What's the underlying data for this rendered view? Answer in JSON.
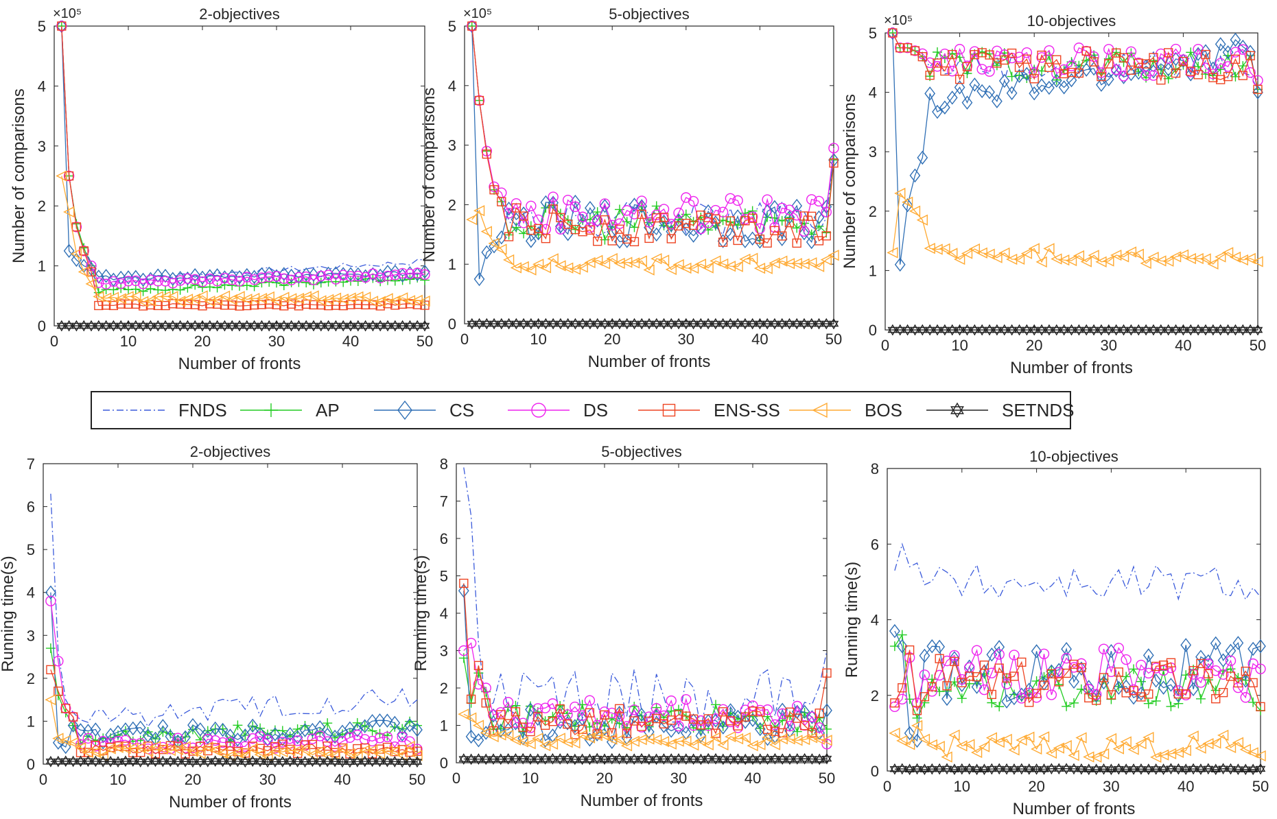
{
  "legend": {
    "entries": [
      {
        "name": "FNDS",
        "marker": "none",
        "dash": "dashdot",
        "color": "#3b5bdb"
      },
      {
        "name": "AP",
        "marker": "plus",
        "dash": "solid",
        "color": "#22cc22"
      },
      {
        "name": "CS",
        "marker": "diamond",
        "dash": "solid",
        "color": "#2f6fb5"
      },
      {
        "name": "DS",
        "marker": "circle",
        "dash": "solid",
        "color": "#ee22ee"
      },
      {
        "name": "ENS-SS",
        "marker": "square",
        "dash": "solid",
        "color": "#ee4422"
      },
      {
        "name": "BOS",
        "marker": "triangle-left",
        "dash": "solid",
        "color": "#ffaa33"
      },
      {
        "name": "SETNDS",
        "marker": "hexagram",
        "dash": "solid",
        "color": "#222222"
      }
    ]
  },
  "chart_data": [
    {
      "type": "line",
      "title": "2-objectives",
      "xlabel": "Number of fronts",
      "ylabel": "Number of comparisons",
      "exponent_label": "×10⁵",
      "xlim": [
        0,
        50
      ],
      "ylim": [
        0,
        5
      ],
      "xticks": [
        0,
        10,
        20,
        30,
        40,
        50
      ],
      "yticks": [
        0,
        1,
        2,
        3,
        4,
        5
      ],
      "x_range": [
        1,
        50
      ],
      "series": [
        {
          "name": "FNDS",
          "start": [
            5,
            2.5,
            1.7,
            1.3,
            1.05
          ],
          "base": 0.72,
          "slope": 0.007,
          "noise": 0.05,
          "end": 1.1
        },
        {
          "name": "AP",
          "start": [
            5,
            2.5,
            1.7,
            1.3,
            1.0
          ],
          "base": 0.55,
          "slope": 0.005,
          "noise": 0.04
        },
        {
          "name": "CS",
          "start": [
            5,
            1.25,
            1.1,
            1.0,
            0.95
          ],
          "base": 0.78,
          "slope": 0.002,
          "noise": 0.04
        },
        {
          "name": "DS",
          "start": [
            5,
            2.5,
            1.65,
            1.25,
            1.0
          ],
          "base": 0.7,
          "slope": 0.003,
          "noise": 0.04
        },
        {
          "name": "ENS-SS",
          "start": [
            5,
            2.5,
            1.65,
            1.25,
            0.9
          ],
          "base": 0.35,
          "slope": 0.0,
          "noise": 0.02
        },
        {
          "name": "BOS",
          "start": [
            2.5,
            1.9,
            1.2,
            0.9,
            0.7
          ],
          "base": 0.45,
          "slope": 0.0,
          "noise": 0.05
        },
        {
          "name": "SETNDS",
          "start": [],
          "base": 0.0,
          "slope": 0,
          "noise": 0
        }
      ]
    },
    {
      "type": "line",
      "title": "5-objectives",
      "xlabel": "Number of fronts",
      "ylabel": "Number of comparisons",
      "exponent_label": "×10⁵",
      "xlim": [
        0,
        50
      ],
      "ylim": [
        0,
        5
      ],
      "xticks": [
        0,
        10,
        20,
        30,
        40,
        50
      ],
      "yticks": [
        0,
        1,
        2,
        3,
        4,
        5
      ],
      "x_range": [
        1,
        50
      ],
      "series": [
        {
          "name": "FNDS",
          "start": [
            5,
            3.75,
            2.9,
            2.25,
            2.1
          ],
          "base": 1.75,
          "slope": 0.0,
          "noise": 0.3,
          "end": 2.8
        },
        {
          "name": "AP",
          "start": [
            5,
            3.75,
            2.9,
            2.25,
            2.05
          ],
          "base": 1.7,
          "slope": 0.0,
          "noise": 0.3,
          "end": 2.75
        },
        {
          "name": "CS",
          "start": [
            5,
            0.75,
            1.2,
            1.3,
            1.45
          ],
          "base": 1.7,
          "slope": 0.0,
          "noise": 0.35,
          "end": 2.75
        },
        {
          "name": "DS",
          "start": [
            5,
            3.75,
            2.9,
            2.3,
            2.2
          ],
          "base": 1.85,
          "slope": 0.0,
          "noise": 0.3,
          "end": 2.95
        },
        {
          "name": "ENS-SS",
          "start": [
            5,
            3.75,
            2.85,
            2.25,
            2.05
          ],
          "base": 1.65,
          "slope": 0.0,
          "noise": 0.3,
          "end": 2.7
        },
        {
          "name": "BOS",
          "start": [
            1.75,
            1.9,
            1.55,
            1.35,
            1.25
          ],
          "base": 1.0,
          "slope": 0.0,
          "noise": 0.1,
          "end": 1.15
        },
        {
          "name": "SETNDS",
          "start": [],
          "base": 0.0,
          "slope": 0,
          "noise": 0
        }
      ]
    },
    {
      "type": "line",
      "title": "10-objectives",
      "xlabel": "Number of fronts",
      "ylabel": "Number of comparisons",
      "exponent_label": "×10⁵",
      "xlim": [
        0,
        50
      ],
      "ylim": [
        0,
        5
      ],
      "xticks": [
        0,
        10,
        20,
        30,
        40,
        50
      ],
      "yticks": [
        0,
        1,
        2,
        3,
        4,
        5
      ],
      "x_range": [
        1,
        50
      ],
      "series": [
        {
          "name": "FNDS",
          "start": [
            5,
            4.75,
            4.75,
            4.7,
            4.6
          ],
          "base": 4.45,
          "slope": 0.0,
          "noise": 0.25,
          "end": 4.05
        },
        {
          "name": "AP",
          "start": [
            5,
            4.75,
            4.75,
            4.7,
            4.6
          ],
          "base": 4.45,
          "slope": 0.0,
          "noise": 0.25,
          "end": 4.05
        },
        {
          "name": "CS",
          "start": [
            5,
            1.1,
            2.1,
            2.6,
            2.9
          ],
          "base": 3.7,
          "slope": 0.02,
          "noise": 0.25,
          "end": 4.0
        },
        {
          "name": "DS",
          "start": [
            5,
            4.75,
            4.75,
            4.7,
            4.65
          ],
          "base": 4.5,
          "slope": 0.0,
          "noise": 0.25,
          "end": 4.2
        },
        {
          "name": "ENS-SS",
          "start": [
            5,
            4.75,
            4.75,
            4.7,
            4.6
          ],
          "base": 4.45,
          "slope": 0.0,
          "noise": 0.25,
          "end": 4.05
        },
        {
          "name": "BOS",
          "start": [
            1.3,
            2.3,
            2.15,
            2.0,
            1.85
          ],
          "base": 1.3,
          "slope": -0.002,
          "noise": 0.12,
          "end": 1.15
        },
        {
          "name": "SETNDS",
          "start": [],
          "base": 0.0,
          "slope": 0,
          "noise": 0
        }
      ]
    },
    {
      "type": "line",
      "title": "2-objectives",
      "xlabel": "Number of fronts",
      "ylabel": "Running time(s)",
      "exponent_label": "",
      "xlim": [
        0,
        50
      ],
      "ylim": [
        0,
        7
      ],
      "xticks": [
        0,
        10,
        20,
        30,
        40,
        50
      ],
      "yticks": [
        0,
        1,
        2,
        3,
        4,
        5,
        6,
        7
      ],
      "x_range": [
        1,
        50
      ],
      "series": [
        {
          "name": "FNDS",
          "start": [
            6.3,
            2.6,
            1.5,
            1.2
          ],
          "base": 1.0,
          "slope": 0.012,
          "noise": 0.3,
          "end": 1.5
        },
        {
          "name": "AP",
          "start": [
            2.7,
            1.6,
            1.2,
            0.9
          ],
          "base": 0.6,
          "slope": 0.005,
          "noise": 0.2,
          "end": 0.9
        },
        {
          "name": "CS",
          "start": [
            4.0,
            0.5,
            0.4,
            0.9
          ],
          "base": 0.65,
          "slope": 0.004,
          "noise": 0.2,
          "end": 0.8
        },
        {
          "name": "DS",
          "start": [
            3.8,
            2.4,
            1.3,
            1.1
          ],
          "base": 0.45,
          "slope": 0.002,
          "noise": 0.15,
          "end": 0.35
        },
        {
          "name": "ENS-SS",
          "start": [
            2.2,
            1.7,
            1.3,
            1.1
          ],
          "base": 0.35,
          "slope": 0.0,
          "noise": 0.12,
          "end": 0.3
        },
        {
          "name": "BOS",
          "start": [
            1.5,
            0.6,
            0.55,
            0.5
          ],
          "base": 0.3,
          "slope": 0.0,
          "noise": 0.12,
          "end": 0.2
        },
        {
          "name": "SETNDS",
          "start": [],
          "base": 0.06,
          "slope": 0,
          "noise": 0.01
        }
      ]
    },
    {
      "type": "line",
      "title": "5-objectives",
      "xlabel": "Number of fronts",
      "ylabel": "Running time(s)",
      "exponent_label": "",
      "xlim": [
        0,
        50
      ],
      "ylim": [
        0,
        8
      ],
      "xticks": [
        0,
        10,
        20,
        30,
        40,
        50
      ],
      "yticks": [
        0,
        1,
        2,
        3,
        4,
        5,
        6,
        7,
        8
      ],
      "x_range": [
        1,
        50
      ],
      "series": [
        {
          "name": "FNDS",
          "start": [
            7.9,
            6.6,
            3.2,
            1.5
          ],
          "base": 1.7,
          "slope": 0.0,
          "noise": 0.8,
          "end": 3.0
        },
        {
          "name": "AP",
          "start": [
            2.8,
            1.6,
            2.4,
            1.9
          ],
          "base": 1.2,
          "slope": 0.0,
          "noise": 0.4,
          "end": 0.9
        },
        {
          "name": "CS",
          "start": [
            4.6,
            0.7,
            0.6,
            0.8
          ],
          "base": 1.0,
          "slope": 0.0,
          "noise": 0.45,
          "end": 1.4
        },
        {
          "name": "DS",
          "start": [
            3.0,
            3.2,
            2.1,
            2.0
          ],
          "base": 1.3,
          "slope": 0.0,
          "noise": 0.4,
          "end": 0.5
        },
        {
          "name": "ENS-SS",
          "start": [
            4.8,
            1.7,
            2.6,
            1.6
          ],
          "base": 1.1,
          "slope": 0.0,
          "noise": 0.35,
          "end": 2.4
        },
        {
          "name": "BOS",
          "start": [
            1.3,
            1.2,
            1.0,
            0.8
          ],
          "base": 0.6,
          "slope": 0.0,
          "noise": 0.15,
          "end": 0.6
        },
        {
          "name": "SETNDS",
          "start": [],
          "base": 0.1,
          "slope": 0,
          "noise": 0.01
        }
      ]
    },
    {
      "type": "line",
      "title": "10-objectives",
      "xlabel": "Number of fronts",
      "ylabel": "Running time(s)",
      "exponent_label": "",
      "xlim": [
        0,
        50
      ],
      "ylim": [
        0,
        8
      ],
      "xticks": [
        0,
        10,
        20,
        30,
        40,
        50
      ],
      "yticks": [
        0,
        2,
        4,
        6,
        8
      ],
      "x_range": [
        1,
        50
      ],
      "series": [
        {
          "name": "FNDS",
          "start": [
            5.3,
            6.0,
            5.4,
            5.5
          ],
          "base": 5.0,
          "slope": 0.0,
          "noise": 0.5,
          "end": 4.6
        },
        {
          "name": "AP",
          "start": [
            3.3,
            3.6,
            1.9,
            1.4
          ],
          "base": 2.2,
          "slope": 0.0,
          "noise": 0.5,
          "end": 1.6
        },
        {
          "name": "CS",
          "start": [
            3.7,
            3.3,
            1.0,
            0.8
          ],
          "base": 2.6,
          "slope": 0.0,
          "noise": 0.8,
          "end": 3.3
        },
        {
          "name": "DS",
          "start": [
            1.7,
            1.9,
            3.0,
            1.8
          ],
          "base": 2.6,
          "slope": 0.0,
          "noise": 0.7,
          "end": 2.7
        },
        {
          "name": "ENS-SS",
          "start": [
            1.8,
            2.2,
            3.2,
            1.6
          ],
          "base": 2.4,
          "slope": 0.0,
          "noise": 0.6,
          "end": 1.7
        },
        {
          "name": "BOS",
          "start": [
            1.0,
            0.8,
            0.7,
            1.2
          ],
          "base": 0.65,
          "slope": 0.0,
          "noise": 0.3,
          "end": 0.4
        },
        {
          "name": "SETNDS",
          "start": [],
          "base": 0.05,
          "slope": 0,
          "noise": 0.01
        }
      ]
    }
  ]
}
